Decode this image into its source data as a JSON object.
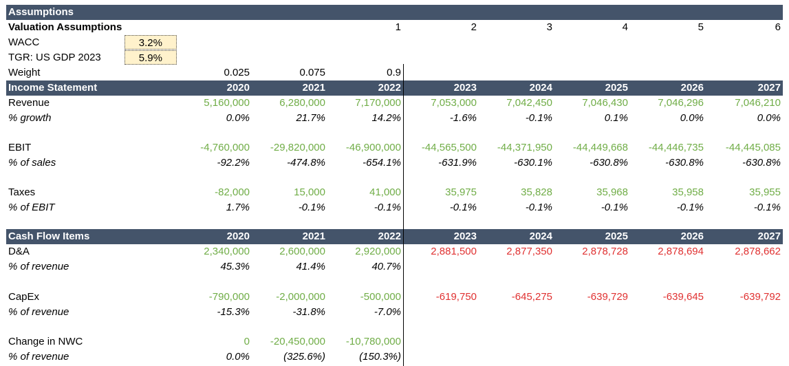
{
  "assumptions_header": "Assumptions",
  "valuation": {
    "title": "Valuation Assumptions",
    "periods": [
      "1",
      "2",
      "3",
      "4",
      "5",
      "6"
    ],
    "wacc_label": "WACC",
    "wacc_value": "3.2%",
    "tgr_label": "TGR: US GDP 2023",
    "tgr_value": "5.9%",
    "weight_label": "Weight",
    "weights": [
      "0.025",
      "0.075",
      "0.9"
    ]
  },
  "income_statement": {
    "title": "Income Statement",
    "years": [
      "2020",
      "2021",
      "2022",
      "2023",
      "2024",
      "2025",
      "2026",
      "2027"
    ],
    "revenue_label": "Revenue",
    "revenue": [
      "5,160,000",
      "6,280,000",
      "7,170,000",
      "7,053,000",
      "7,042,450",
      "7,046,430",
      "7,046,296",
      "7,046,210"
    ],
    "growth_label": "% growth",
    "growth": [
      "0.0%",
      "21.7%",
      "14.2%",
      "-1.6%",
      "-0.1%",
      "0.1%",
      "0.0%",
      "0.0%"
    ],
    "ebit_label": "EBIT",
    "ebit": [
      "-4,760,000",
      "-29,820,000",
      "-46,900,000",
      "-44,565,500",
      "-44,371,950",
      "-44,449,668",
      "-44,446,735",
      "-44,445,085"
    ],
    "ebit_pct_label": "% of sales",
    "ebit_pct": [
      "-92.2%",
      "-474.8%",
      "-654.1%",
      "-631.9%",
      "-630.1%",
      "-630.8%",
      "-630.8%",
      "-630.8%"
    ],
    "taxes_label": "Taxes",
    "taxes": [
      "-82,000",
      "15,000",
      "41,000",
      "35,975",
      "35,828",
      "35,968",
      "35,958",
      "35,955"
    ],
    "taxes_pct_label": "% of EBIT",
    "taxes_pct": [
      "1.7%",
      "-0.1%",
      "-0.1%",
      "-0.1%",
      "-0.1%",
      "-0.1%",
      "-0.1%",
      "-0.1%"
    ]
  },
  "cash_flow": {
    "title": "Cash Flow Items",
    "years": [
      "2020",
      "2021",
      "2022",
      "2023",
      "2024",
      "2025",
      "2026",
      "2027"
    ],
    "da_label": "D&A",
    "da": [
      "2,340,000",
      "2,600,000",
      "2,920,000",
      "2,881,500",
      "2,877,350",
      "2,878,728",
      "2,878,694",
      "2,878,662"
    ],
    "da_pct_label": "% of revenue",
    "da_pct": [
      "45.3%",
      "41.4%",
      "40.7%"
    ],
    "capex_label": "CapEx",
    "capex": [
      "-790,000",
      "-2,000,000",
      "-500,000",
      "-619,750",
      "-645,275",
      "-639,729",
      "-639,645",
      "-639,792"
    ],
    "capex_pct_label": "% of revenue",
    "capex_pct": [
      "-15.3%",
      "-31.8%",
      "-7.0%"
    ],
    "nwc_label": "Change in NWC",
    "nwc": [
      "0",
      "-20,450,000",
      "-10,780,000"
    ],
    "nwc_pct_label": "% of revenue",
    "nwc_pct": [
      "0.0%",
      "(325.6%)",
      "(150.3%)"
    ]
  },
  "colors": {
    "header_band": "#44546a",
    "historical": "#70ad47",
    "projected": "#e03131",
    "input_fill": "#fff2cc"
  }
}
